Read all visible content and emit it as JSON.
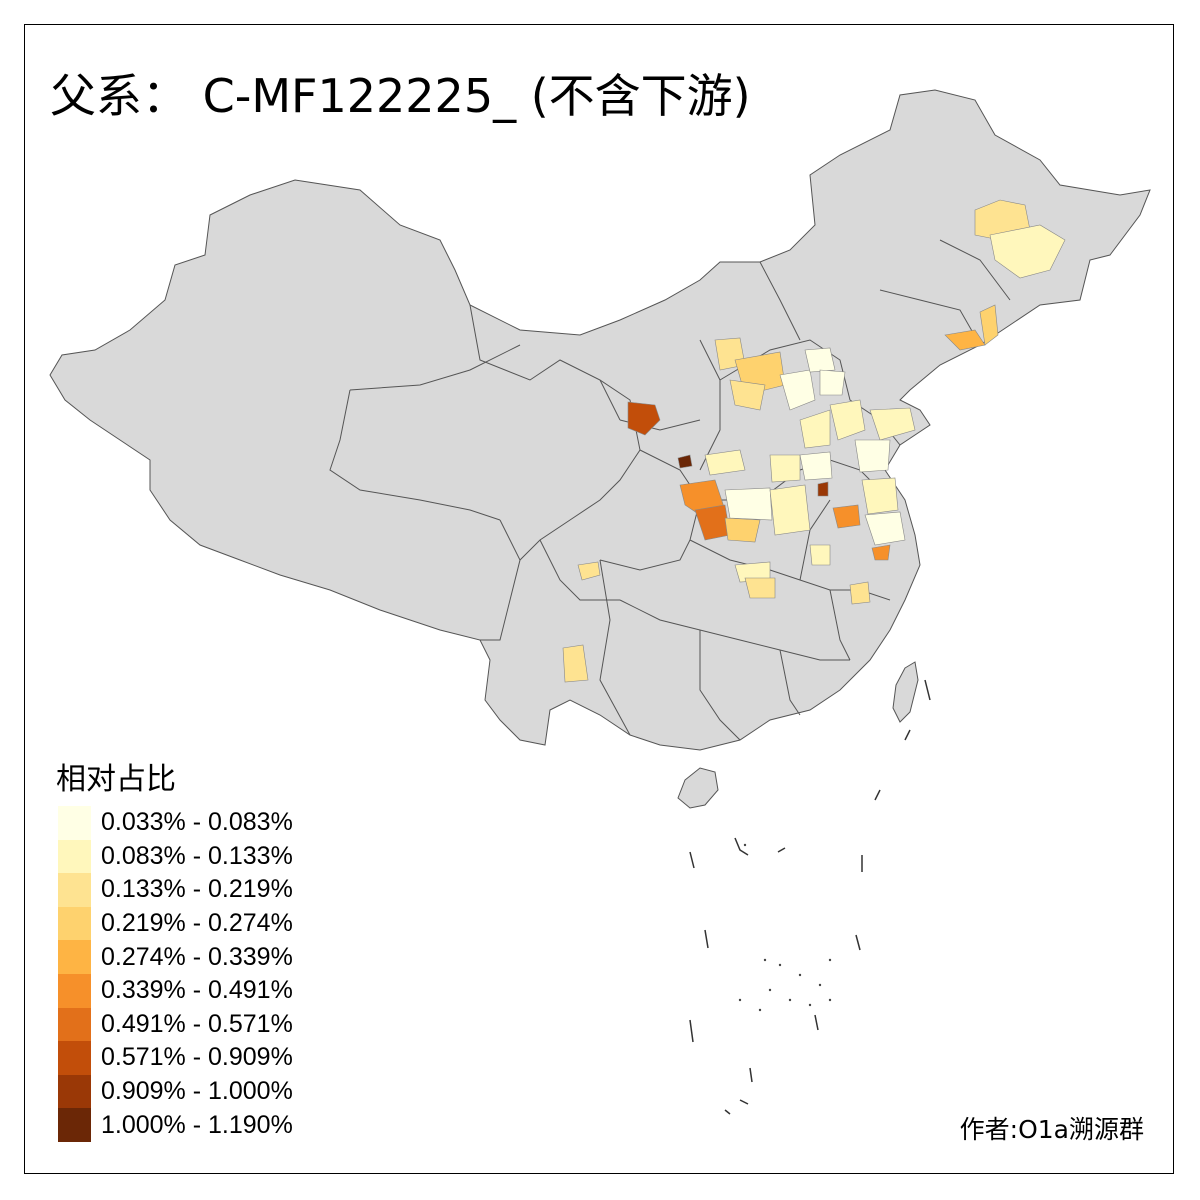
{
  "title": "父系： C-MF122225_ (不含下游)",
  "legend": {
    "title": "相对占比",
    "items": [
      {
        "label": "0.033% - 0.083%",
        "color": "#FFFFE5"
      },
      {
        "label": "0.083% - 0.133%",
        "color": "#FFF7BC"
      },
      {
        "label": "0.133% - 0.219%",
        "color": "#FEE391"
      },
      {
        "label": "0.219% - 0.274%",
        "color": "#FED26E"
      },
      {
        "label": "0.274% - 0.339%",
        "color": "#FEB444"
      },
      {
        "label": "0.339% - 0.491%",
        "color": "#F6902A"
      },
      {
        "label": "0.491% - 0.571%",
        "color": "#E2701A"
      },
      {
        "label": "0.571% - 0.909%",
        "color": "#C24E0A"
      },
      {
        "label": "0.909% - 1.000%",
        "color": "#9A3806"
      },
      {
        "label": "1.000% - 1.190%",
        "color": "#6B2706"
      }
    ]
  },
  "author": "作者:O1a溯源群",
  "colors": {
    "land": "#D9D9D9",
    "border": "#555555",
    "frame": "#000000"
  }
}
